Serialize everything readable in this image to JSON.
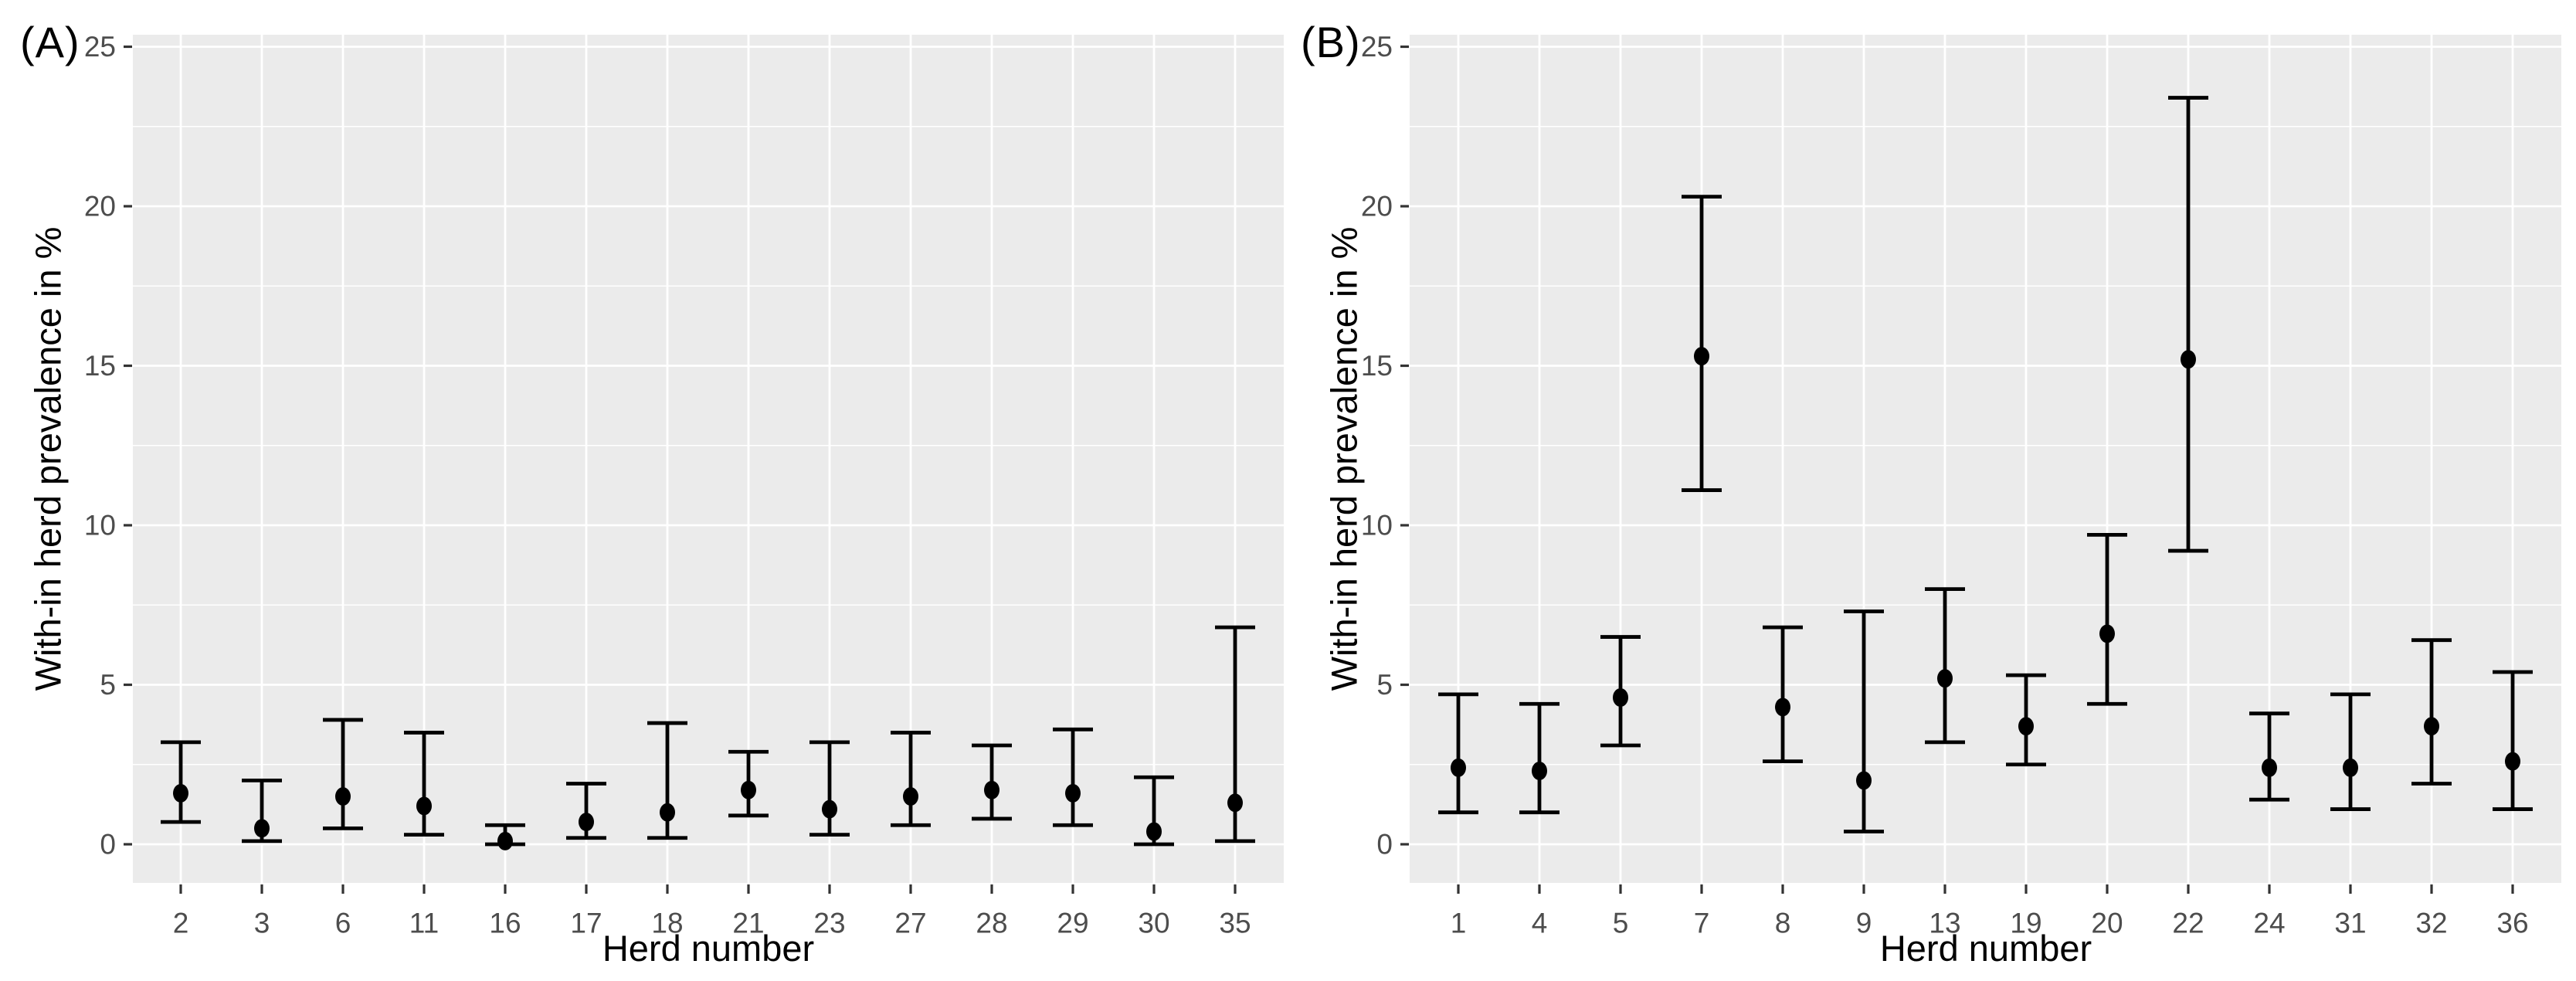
{
  "figure": {
    "background": "#ffffff",
    "panel_background": "#ebebeb",
    "grid_color": "#ffffff",
    "axis_text_color": "#4d4d4d",
    "axis_tick_color": "#333333",
    "point_color": "#000000",
    "errorbar_color": "#000000"
  },
  "chart_data": [
    {
      "type": "scatter",
      "subtype": "pointrange-errorbar",
      "tag": "(A)",
      "title": "",
      "xlabel": "Herd number",
      "ylabel": "With-in herd prevalence in %",
      "ylim": [
        0,
        25
      ],
      "yticks": [
        0,
        5,
        10,
        15,
        20,
        25
      ],
      "grid": "major+minor horizontal, major vertical per category",
      "legend": "none",
      "categories": [
        "2",
        "3",
        "6",
        "11",
        "16",
        "17",
        "18",
        "21",
        "23",
        "27",
        "28",
        "29",
        "30",
        "35"
      ],
      "series": [
        {
          "name": "point estimate",
          "values": [
            1.6,
            0.5,
            1.5,
            1.2,
            0.1,
            0.7,
            1.0,
            1.7,
            1.1,
            1.5,
            1.7,
            1.6,
            0.4,
            1.3
          ]
        },
        {
          "name": "lower CI",
          "values": [
            0.7,
            0.1,
            0.5,
            0.3,
            0.0,
            0.2,
            0.2,
            0.9,
            0.3,
            0.6,
            0.8,
            0.6,
            0.0,
            0.1
          ]
        },
        {
          "name": "upper CI",
          "values": [
            3.2,
            2.0,
            3.9,
            3.5,
            0.6,
            1.9,
            3.8,
            2.9,
            3.2,
            3.5,
            3.1,
            3.6,
            2.1,
            6.8
          ]
        }
      ]
    },
    {
      "type": "scatter",
      "subtype": "pointrange-errorbar",
      "tag": "(B)",
      "title": "",
      "xlabel": "Herd number",
      "ylabel": "With-in herd prevalence in %",
      "ylim": [
        0,
        25
      ],
      "yticks": [
        0,
        5,
        10,
        15,
        20,
        25
      ],
      "grid": "major+minor horizontal, major vertical per category",
      "legend": "none",
      "categories": [
        "1",
        "4",
        "5",
        "7",
        "8",
        "9",
        "13",
        "19",
        "20",
        "22",
        "24",
        "31",
        "32",
        "36"
      ],
      "series": [
        {
          "name": "point estimate",
          "values": [
            2.4,
            2.3,
            4.6,
            15.3,
            4.3,
            2.0,
            5.2,
            3.7,
            6.6,
            15.2,
            2.4,
            2.4,
            3.7,
            2.6
          ]
        },
        {
          "name": "lower CI",
          "values": [
            1.0,
            1.0,
            3.1,
            11.1,
            2.6,
            0.4,
            3.2,
            2.5,
            4.4,
            9.2,
            1.4,
            1.1,
            1.9,
            1.1
          ]
        },
        {
          "name": "upper CI",
          "values": [
            4.7,
            4.4,
            6.5,
            20.3,
            6.8,
            7.3,
            8.0,
            5.3,
            9.7,
            23.4,
            4.1,
            4.7,
            6.4,
            5.4
          ]
        }
      ]
    }
  ]
}
